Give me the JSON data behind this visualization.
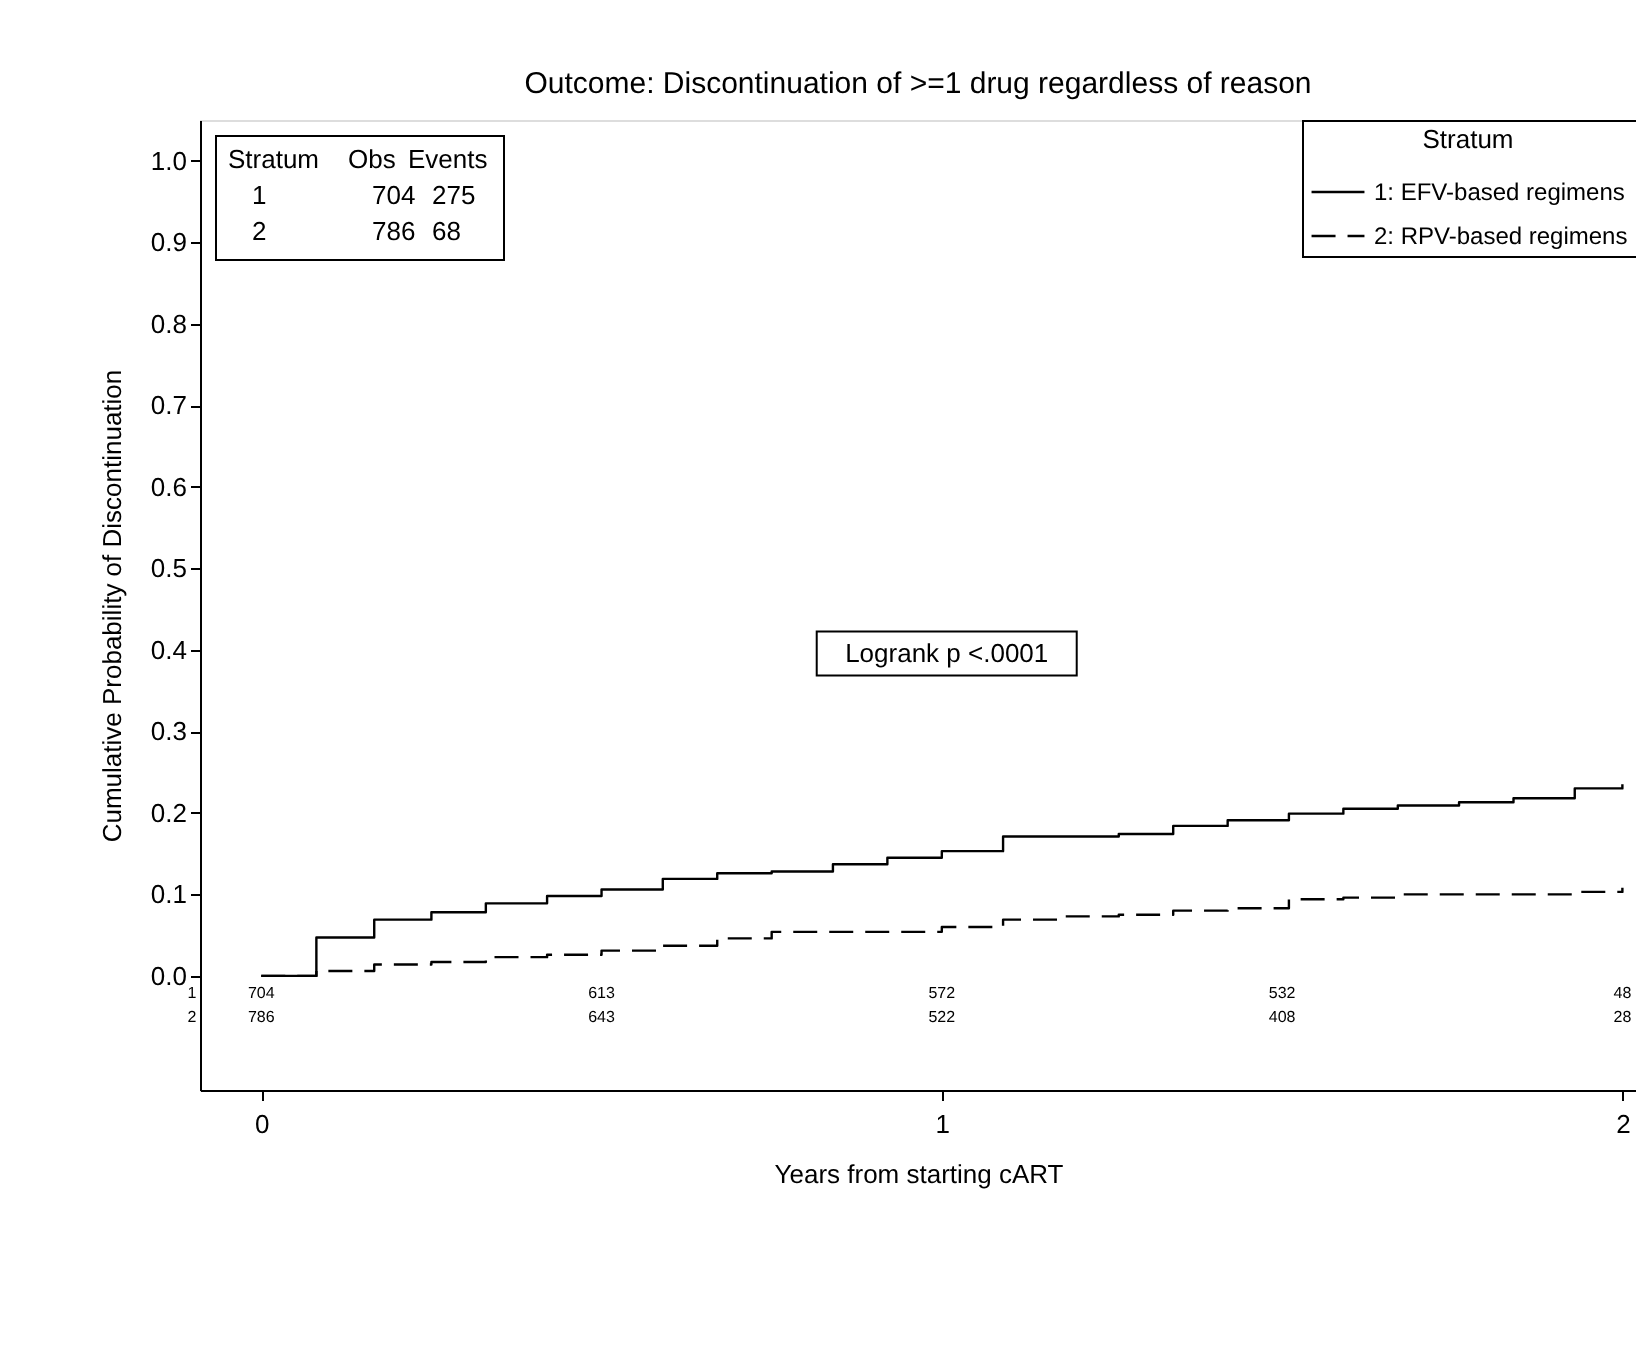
{
  "chart_data": {
    "type": "step",
    "title": "Outcome: Discontinuation of >=1 drug regardless of reason",
    "xlabel": "Years from starting cART",
    "ylabel": "Cumulative Probability of Discontinuation",
    "legend_title": "Stratum",
    "legend": "top right",
    "marker": "none",
    "grid": false,
    "xlim": [
      -0.09,
      2.02
    ],
    "xticks": [
      0,
      1,
      2
    ],
    "ylim": [
      -0.14,
      1.05
    ],
    "yticks": [
      {
        "value": 0,
        "label": "0.0"
      },
      0.1,
      0.2,
      0.3,
      0.4,
      0.5,
      0.6,
      0.7,
      0.8,
      0.9,
      {
        "value": 1,
        "label": "1.0"
      }
    ],
    "series": [
      {
        "name": "1: EFV-based regimens",
        "color": "#000000",
        "line_style": "solid",
        "x": [
          0,
          0.081,
          0.166,
          0.25,
          0.33,
          0.42,
          0.5,
          0.59,
          0.67,
          0.75,
          0.84,
          0.92,
          1.0,
          1.09,
          1.26,
          1.34,
          1.42,
          1.51,
          1.59,
          1.67,
          1.76,
          1.84,
          1.93,
          2.0
        ],
        "values": [
          0,
          0.047,
          0.069,
          0.078,
          0.089,
          0.098,
          0.106,
          0.119,
          0.126,
          0.128,
          0.137,
          0.145,
          0.153,
          0.171,
          0.174,
          0.184,
          0.191,
          0.199,
          0.205,
          0.209,
          0.213,
          0.218,
          0.23,
          0.235
        ]
      },
      {
        "name": "2: RPV-based regimens",
        "color": "#000000",
        "line_style": "dashed",
        "x": [
          0,
          0.081,
          0.166,
          0.25,
          0.33,
          0.42,
          0.5,
          0.59,
          0.67,
          0.75,
          1.0,
          1.09,
          1.17,
          1.26,
          1.34,
          1.42,
          1.51,
          1.59,
          1.67,
          1.93,
          2.0
        ],
        "values": [
          0,
          0.006,
          0.014,
          0.017,
          0.023,
          0.026,
          0.031,
          0.037,
          0.046,
          0.054,
          0.06,
          0.069,
          0.073,
          0.075,
          0.08,
          0.083,
          0.094,
          0.096,
          0.1,
          0.103,
          0.108
        ]
      }
    ],
    "annotations": [
      "Logrank p <.0001",
      "Stratum",
      "Obs",
      "Events",
      "1",
      "704",
      "275",
      "2",
      "786",
      "68",
      "1",
      "704",
      "613",
      "572",
      "532",
      "48",
      "2",
      "786",
      "643",
      "522",
      "408",
      "28"
    ]
  }
}
